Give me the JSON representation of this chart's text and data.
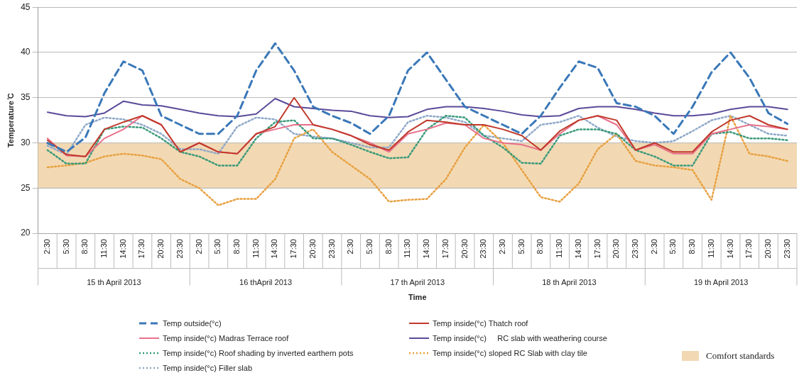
{
  "chart_data": {
    "type": "line",
    "xlabel": "Time",
    "ylabel": "Temperature ̊C",
    "categories": [
      "2:30",
      "5:30",
      "8:30",
      "11:30",
      "14:30",
      "17:30",
      "20:30",
      "23:30",
      "2:30",
      "5:30",
      "8:30",
      "11:30",
      "14:30",
      "17:30",
      "20:30",
      "23:30",
      "2:30",
      "5:30",
      "8:30",
      "11:30",
      "14:30",
      "17:30",
      "20:30",
      "23:30",
      "2:30",
      "5:30",
      "8:30",
      "11:30",
      "14:30",
      "17:30",
      "20:30",
      "23:30",
      "2:30",
      "5:30",
      "8:30",
      "11:30",
      "14:30",
      "17:30",
      "20:30",
      "23:30"
    ],
    "annotations": [
      "15 th April 2013",
      "16 thApril 2013",
      "17 th April 2013",
      "18 th April 2013",
      "19 th April 2013"
    ],
    "ylim": [
      20,
      45
    ],
    "yticks": [
      20,
      25,
      30,
      35,
      40,
      45
    ],
    "grid": "y",
    "legend": "bottom",
    "marker": "none",
    "bands": [
      {
        "axis": "y",
        "from": 25,
        "to": 30,
        "label": "Comfort standards",
        "color": "#f2d9b3"
      }
    ],
    "series": [
      {
        "name": "Temp outside(°c)",
        "color": "#3a78b8",
        "line_style": "dashed",
        "values": [
          30,
          29,
          30.6,
          35.5,
          39,
          38,
          33,
          32,
          31,
          31,
          33,
          38,
          41,
          38,
          34,
          33,
          32.2,
          31,
          33,
          38,
          40,
          37,
          34,
          33,
          32,
          31,
          33,
          36.1,
          39,
          38.3,
          34.4,
          34,
          33,
          31,
          34,
          37.8,
          40,
          37.2,
          33.3,
          32.1
        ]
      },
      {
        "name": "Temp inside(°c) Thatch roof",
        "color": "#c0392b",
        "line_style": "solid",
        "values": [
          30.3,
          28.7,
          28.5,
          31.5,
          32.3,
          33,
          32,
          29,
          30,
          29,
          28.8,
          31,
          31.8,
          35,
          32,
          31.5,
          30.8,
          29.8,
          29.2,
          31.2,
          32.5,
          32.3,
          32,
          32,
          31.5,
          30.8,
          29.2,
          31.3,
          32.5,
          33,
          32.5,
          29.2,
          30,
          29,
          29,
          31.2,
          32.5,
          33,
          32,
          31.5
        ]
      },
      {
        "name": "Temp inside(°c) Madras Terrace roof",
        "color": "#e8708a",
        "line_style": "solid",
        "values": [
          30.5,
          28.6,
          28.5,
          30.5,
          31.5,
          33,
          32,
          29,
          30,
          29,
          28.8,
          31,
          31.5,
          32,
          32,
          31.5,
          30.8,
          30,
          29,
          31,
          31.5,
          32.2,
          32,
          30.5,
          30,
          29.8,
          29.2,
          31,
          32.5,
          33,
          32,
          29.2,
          29.8,
          28.8,
          28.8,
          31,
          31.5,
          32,
          31.8,
          31.5
        ]
      },
      {
        "name": "Temp inside(°c)     RC slab with weathering course",
        "color": "#5b4a9a",
        "line_style": "solid",
        "values": [
          33.4,
          33,
          32.9,
          33.3,
          34.6,
          34.2,
          34.1,
          33.7,
          33.3,
          33,
          32.9,
          33.2,
          34.9,
          34,
          33.8,
          33.6,
          33.5,
          33,
          32.8,
          32.9,
          33.7,
          34,
          34,
          33.8,
          33.5,
          33.1,
          32.9,
          33,
          33.8,
          34,
          34,
          33.7,
          33.3,
          33,
          33,
          33.2,
          33.7,
          34,
          34,
          33.7
        ]
      },
      {
        "name": "Temp inside(°c) Roof shading by inverted earthern pots",
        "color": "#3a9a7a",
        "line_style": "dotted",
        "values": [
          29.2,
          27.7,
          27.7,
          31.5,
          31.8,
          31.7,
          30.5,
          29,
          28.5,
          27.5,
          27.5,
          30.5,
          32.3,
          32.5,
          30.5,
          30.5,
          29.8,
          29,
          28.3,
          28.4,
          31.5,
          33,
          32.8,
          30.8,
          29.5,
          27.8,
          27.7,
          30.8,
          31.5,
          31.5,
          31,
          29.2,
          28.5,
          27.5,
          27.5,
          31,
          31.2,
          30.5,
          30.5,
          30.3
        ]
      },
      {
        "name": "Temp inside(°c) sloped RC Slab with clay tile",
        "color": "#e8a040",
        "line_style": "dotted",
        "values": [
          27.3,
          27.5,
          27.8,
          28.5,
          28.8,
          28.6,
          28.2,
          26,
          25,
          23.1,
          23.8,
          23.8,
          26,
          30.5,
          31.5,
          29,
          27.5,
          26,
          23.5,
          23.7,
          23.8,
          26,
          29.5,
          32,
          30,
          27,
          24,
          23.5,
          25.5,
          29.3,
          31,
          28,
          27.5,
          27.3,
          27,
          23.7,
          33,
          28.8,
          28.5,
          28
        ]
      },
      {
        "name": "Temp inside(°c) Filler slab",
        "color": "#8fa8c8",
        "line_style": "dotted",
        "values": [
          29.7,
          28.7,
          32,
          32.8,
          32.6,
          32,
          31,
          29.3,
          29.3,
          28.8,
          31.8,
          32.8,
          32.6,
          31,
          30.7,
          30.5,
          30,
          29.5,
          29.5,
          32.3,
          33,
          32.8,
          32.3,
          30.8,
          30.5,
          30.2,
          32,
          32.3,
          33,
          31.7,
          30.7,
          30.2,
          30,
          30.2,
          31.3,
          32.5,
          33,
          32,
          31,
          30.8
        ]
      }
    ]
  }
}
